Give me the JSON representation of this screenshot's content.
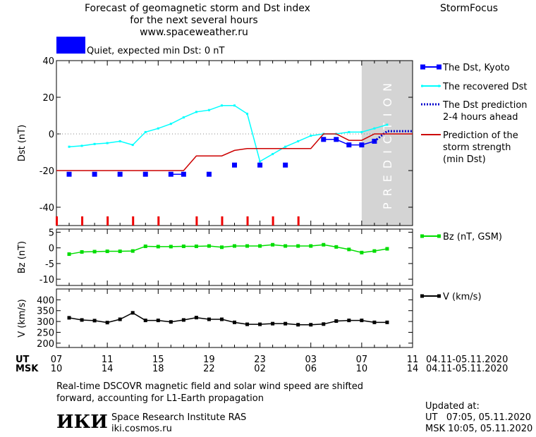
{
  "header": {
    "title_line1": "Forecast of geomagnetic storm and Dst index",
    "title_line2": "for the next several hours",
    "url": "www.spaceweather.ru",
    "brand": "StormFocus"
  },
  "status": {
    "label": "Quiet, expected min Dst: 0 nT",
    "color": "#0000ff"
  },
  "prediction_label": "PREDICTION",
  "time_axis": {
    "ut_label": "UT",
    "msk_label": "MSK",
    "ut_ticks": [
      "07",
      "11",
      "15",
      "19",
      "23",
      "03",
      "07",
      "11"
    ],
    "msk_ticks": [
      "10",
      "14",
      "18",
      "22",
      "02",
      "06",
      "10",
      "14"
    ],
    "date_range_ut": "04.11-05.11.2020",
    "date_range_msk": "04.11-05.11.2020"
  },
  "notes": {
    "line1": "Real-time DSCOVR magnetic field and solar wind speed are shifted",
    "line2": "forward, accounting for L1-Earth propagation"
  },
  "institute": {
    "logo": "ИКИ",
    "name": "Space Research Institute RAS",
    "site": "iki.cosmos.ru"
  },
  "updated": {
    "label": "Updated at:",
    "ut": "UT   07:05, 05.11.2020",
    "msk": "MSK 10:05, 05.11.2020"
  },
  "chart_data": [
    {
      "type": "line",
      "ylabel": "Dst (nT)",
      "ylim": [
        -50,
        40
      ],
      "yticks": [
        40,
        20,
        0,
        -20,
        -40
      ],
      "xlim": [
        7,
        35
      ],
      "prediction_start": 31,
      "series": [
        {
          "name": "The Dst, Kyoto",
          "color": "#0000ff",
          "marker": "square",
          "x": [
            8,
            10,
            12,
            14,
            16,
            17,
            19,
            21,
            23,
            25,
            28,
            29,
            30,
            31,
            32
          ],
          "y": [
            -22,
            -22,
            -22,
            -22,
            -22,
            -22,
            -22,
            -17,
            -17,
            -17,
            -3,
            -3,
            -6,
            -6,
            -4
          ]
        },
        {
          "name": "The recovered Dst",
          "color": "#00ffff",
          "marker": "small",
          "x": [
            8,
            9,
            10,
            11,
            12,
            13,
            14,
            15,
            16,
            17,
            18,
            19,
            20,
            21,
            22,
            23,
            24,
            25,
            26,
            27,
            28,
            29,
            30,
            31,
            32,
            33
          ],
          "y": [
            -7,
            -6.5,
            -5.5,
            -5,
            -4,
            -6,
            1,
            3,
            5.5,
            9,
            12,
            13,
            15.5,
            15.5,
            11,
            -15,
            -11,
            -7,
            -4,
            -1,
            0,
            0,
            1,
            1,
            3,
            5
          ]
        },
        {
          "name": "The Dst prediction 2-4 hours ahead",
          "color": "#0000cc",
          "dashed": true,
          "x": [
            32,
            33,
            35
          ],
          "y": [
            -4,
            1.5,
            1.5
          ]
        },
        {
          "name": "Prediction of the storm strength (min Dst)",
          "color": "#cc0000",
          "x": [
            7,
            17,
            18,
            19,
            20,
            21,
            22,
            23,
            24,
            25,
            26,
            27,
            28,
            29,
            30,
            31,
            32,
            33,
            35
          ],
          "y": [
            -20,
            -20,
            -12,
            -12,
            -12,
            -9,
            -8,
            -8,
            -8,
            -8,
            -8,
            -8,
            0,
            0,
            -3.5,
            -3.5,
            0,
            0,
            0
          ]
        }
      ],
      "storm_markers_x": [
        7,
        9,
        11,
        13,
        15,
        18,
        20,
        22,
        24,
        26
      ],
      "legend": [
        {
          "label": "The Dst, Kyoto"
        },
        {
          "label": "The recovered Dst"
        },
        {
          "label": "The Dst prediction",
          "label2": "2-4 hours ahead"
        },
        {
          "label": "Prediction of the",
          "label2": "storm strength",
          "label3": "(min Dst)"
        }
      ]
    },
    {
      "type": "line",
      "ylabel": "Bz (nT)",
      "ylim": [
        -12,
        6
      ],
      "yticks": [
        5,
        0,
        -5,
        -10
      ],
      "series": [
        {
          "name": "Bz (nT, GSM)",
          "color": "#00dd00",
          "x": [
            8,
            9,
            10,
            11,
            12,
            13,
            14,
            15,
            16,
            17,
            18,
            19,
            20,
            21,
            22,
            23,
            24,
            25,
            26,
            27,
            28,
            29,
            30,
            31,
            32,
            33
          ],
          "y": [
            -2,
            -1.3,
            -1.2,
            -1.1,
            -1.1,
            -1,
            0.5,
            0.4,
            0.4,
            0.5,
            0.5,
            0.6,
            0.2,
            0.6,
            0.6,
            0.6,
            1,
            0.6,
            0.6,
            0.6,
            1,
            0.3,
            -0.5,
            -1.5,
            -1,
            -0.3
          ]
        }
      ]
    },
    {
      "type": "line",
      "ylabel": "V (km/s)",
      "ylim": [
        180,
        450
      ],
      "yticks": [
        400,
        350,
        300,
        250,
        200
      ],
      "series": [
        {
          "name": "V (km/s)",
          "color": "#000000",
          "x": [
            8,
            9,
            10,
            11,
            12,
            13,
            14,
            15,
            16,
            17,
            18,
            19,
            20,
            21,
            22,
            23,
            24,
            25,
            26,
            27,
            28,
            29,
            30,
            31,
            32,
            33
          ],
          "y": [
            317,
            307,
            304,
            295,
            310,
            340,
            305,
            305,
            298,
            307,
            318,
            310,
            310,
            296,
            287,
            287,
            290,
            290,
            285,
            285,
            288,
            302,
            305,
            305,
            296,
            296
          ]
        }
      ]
    }
  ]
}
